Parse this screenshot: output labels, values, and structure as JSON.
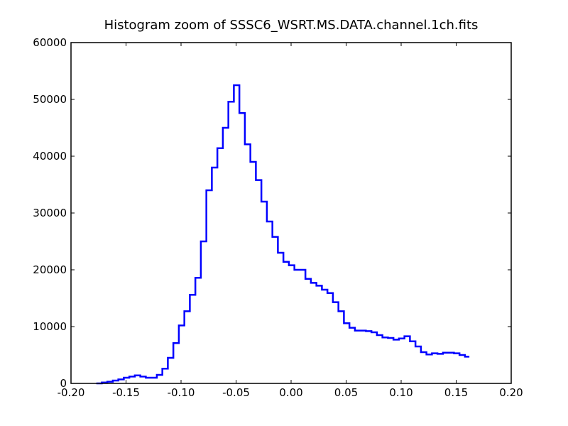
{
  "chart_data": {
    "type": "line",
    "step": true,
    "title": "Histogram zoom of SSSC6_WSRT.MS.DATA.channel.1ch.fits",
    "xlabel": "",
    "ylabel": "",
    "xlim": [
      -0.2,
      0.2
    ],
    "ylim": [
      0,
      60000
    ],
    "x_ticks": [
      -0.2,
      -0.15,
      -0.1,
      -0.05,
      0.0,
      0.05,
      0.1,
      0.15,
      0.2
    ],
    "x_tick_labels": [
      "-0.20",
      "-0.15",
      "-0.10",
      "-0.05",
      "0.00",
      "0.05",
      "0.10",
      "0.15",
      "0.20"
    ],
    "y_ticks": [
      0,
      10000,
      20000,
      30000,
      40000,
      50000,
      60000
    ],
    "y_tick_labels": [
      "0",
      "10000",
      "20000",
      "30000",
      "40000",
      "50000",
      "60000"
    ],
    "grid": false,
    "line_color": "#0000ff",
    "x": [
      -0.177,
      -0.172,
      -0.167,
      -0.162,
      -0.157,
      -0.152,
      -0.147,
      -0.142,
      -0.137,
      -0.132,
      -0.127,
      -0.122,
      -0.117,
      -0.112,
      -0.107,
      -0.102,
      -0.097,
      -0.092,
      -0.087,
      -0.082,
      -0.077,
      -0.072,
      -0.067,
      -0.062,
      -0.057,
      -0.052,
      -0.047,
      -0.042,
      -0.037,
      -0.032,
      -0.027,
      -0.022,
      -0.017,
      -0.012,
      -0.007,
      -0.002,
      0.003,
      0.008,
      0.013,
      0.018,
      0.023,
      0.028,
      0.033,
      0.038,
      0.043,
      0.048,
      0.053,
      0.058,
      0.063,
      0.068,
      0.073,
      0.078,
      0.083,
      0.088,
      0.093,
      0.098,
      0.103,
      0.108,
      0.113,
      0.118,
      0.123,
      0.128,
      0.133,
      0.138,
      0.143,
      0.148,
      0.153,
      0.158
    ],
    "values": [
      0,
      150,
      300,
      500,
      700,
      1000,
      1200,
      1400,
      1200,
      1000,
      1000,
      1500,
      2600,
      4500,
      7100,
      10200,
      12700,
      15600,
      18600,
      25000,
      34000,
      38000,
      41400,
      45000,
      49600,
      52500,
      47600,
      42100,
      39000,
      35800,
      32000,
      28500,
      25800,
      23000,
      21400,
      20800,
      20000,
      20000,
      18400,
      17700,
      17200,
      16500,
      15900,
      14300,
      12700,
      10600,
      9800,
      9300,
      9300,
      9200,
      9000,
      8500,
      8100,
      8000,
      7700,
      7900,
      8300,
      7400,
      6500,
      5500,
      5100,
      5300,
      5200,
      5400,
      5400,
      5300,
      5000,
      4700
    ],
    "x_end": 0.162
  }
}
